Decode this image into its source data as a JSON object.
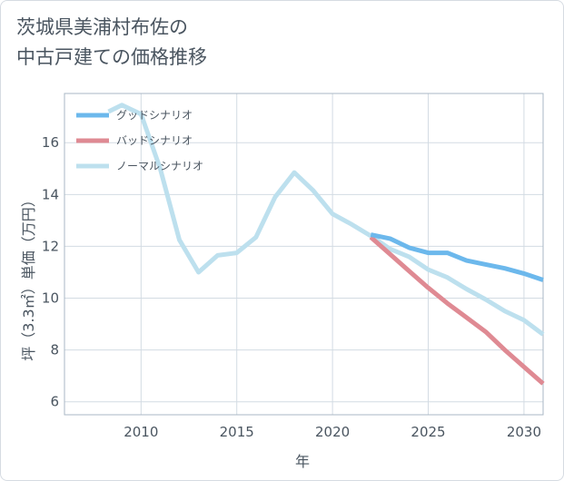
{
  "title": {
    "line1": "茨城県美浦村布佐の",
    "line2": "中古戸建ての価格推移"
  },
  "chart_data": {
    "type": "line",
    "xlabel": "年",
    "ylabel": "坪（3.3㎡）単価（万円）",
    "xlim": [
      2006.0,
      2031.0
    ],
    "ylim": [
      5.5,
      17.9
    ],
    "xticks": [
      2010,
      2015,
      2020,
      2025,
      2030
    ],
    "yticks": [
      6,
      8,
      10,
      12,
      14,
      16
    ],
    "grid": true,
    "legend_position": "top-left",
    "series": [
      {
        "name": "グッドシナリオ",
        "color": "#6cb8ec",
        "points": [
          [
            2022,
            12.45
          ],
          [
            2023,
            12.3
          ],
          [
            2024,
            11.95
          ],
          [
            2025,
            11.75
          ],
          [
            2026,
            11.75
          ],
          [
            2027,
            11.45
          ],
          [
            2028,
            11.3
          ],
          [
            2029,
            11.15
          ],
          [
            2030,
            10.95
          ],
          [
            2031,
            10.7
          ]
        ]
      },
      {
        "name": "バッドシナリオ",
        "color": "#df8a93",
        "points": [
          [
            2022,
            12.35
          ],
          [
            2023,
            11.7
          ],
          [
            2024,
            11.05
          ],
          [
            2025,
            10.4
          ],
          [
            2026,
            9.8
          ],
          [
            2027,
            9.25
          ],
          [
            2028,
            8.7
          ],
          [
            2029,
            8.0
          ],
          [
            2030,
            7.35
          ],
          [
            2031,
            6.7
          ]
        ]
      },
      {
        "name": "ノーマルシナリオ",
        "color": "#bde0ee",
        "points": [
          [
            2008.3,
            17.2
          ],
          [
            2009,
            17.45
          ],
          [
            2010,
            17.1
          ],
          [
            2011,
            15.0
          ],
          [
            2012,
            12.25
          ],
          [
            2013,
            11.0
          ],
          [
            2014,
            11.65
          ],
          [
            2015,
            11.75
          ],
          [
            2016,
            12.35
          ],
          [
            2017,
            13.9
          ],
          [
            2018,
            14.85
          ],
          [
            2019,
            14.15
          ],
          [
            2020,
            13.25
          ],
          [
            2021,
            12.85
          ],
          [
            2022,
            12.4
          ],
          [
            2023,
            11.9
          ],
          [
            2024,
            11.6
          ],
          [
            2025,
            11.1
          ],
          [
            2026,
            10.8
          ],
          [
            2027,
            10.35
          ],
          [
            2028,
            9.95
          ],
          [
            2029,
            9.5
          ],
          [
            2030,
            9.15
          ],
          [
            2031,
            8.6
          ]
        ]
      }
    ]
  }
}
